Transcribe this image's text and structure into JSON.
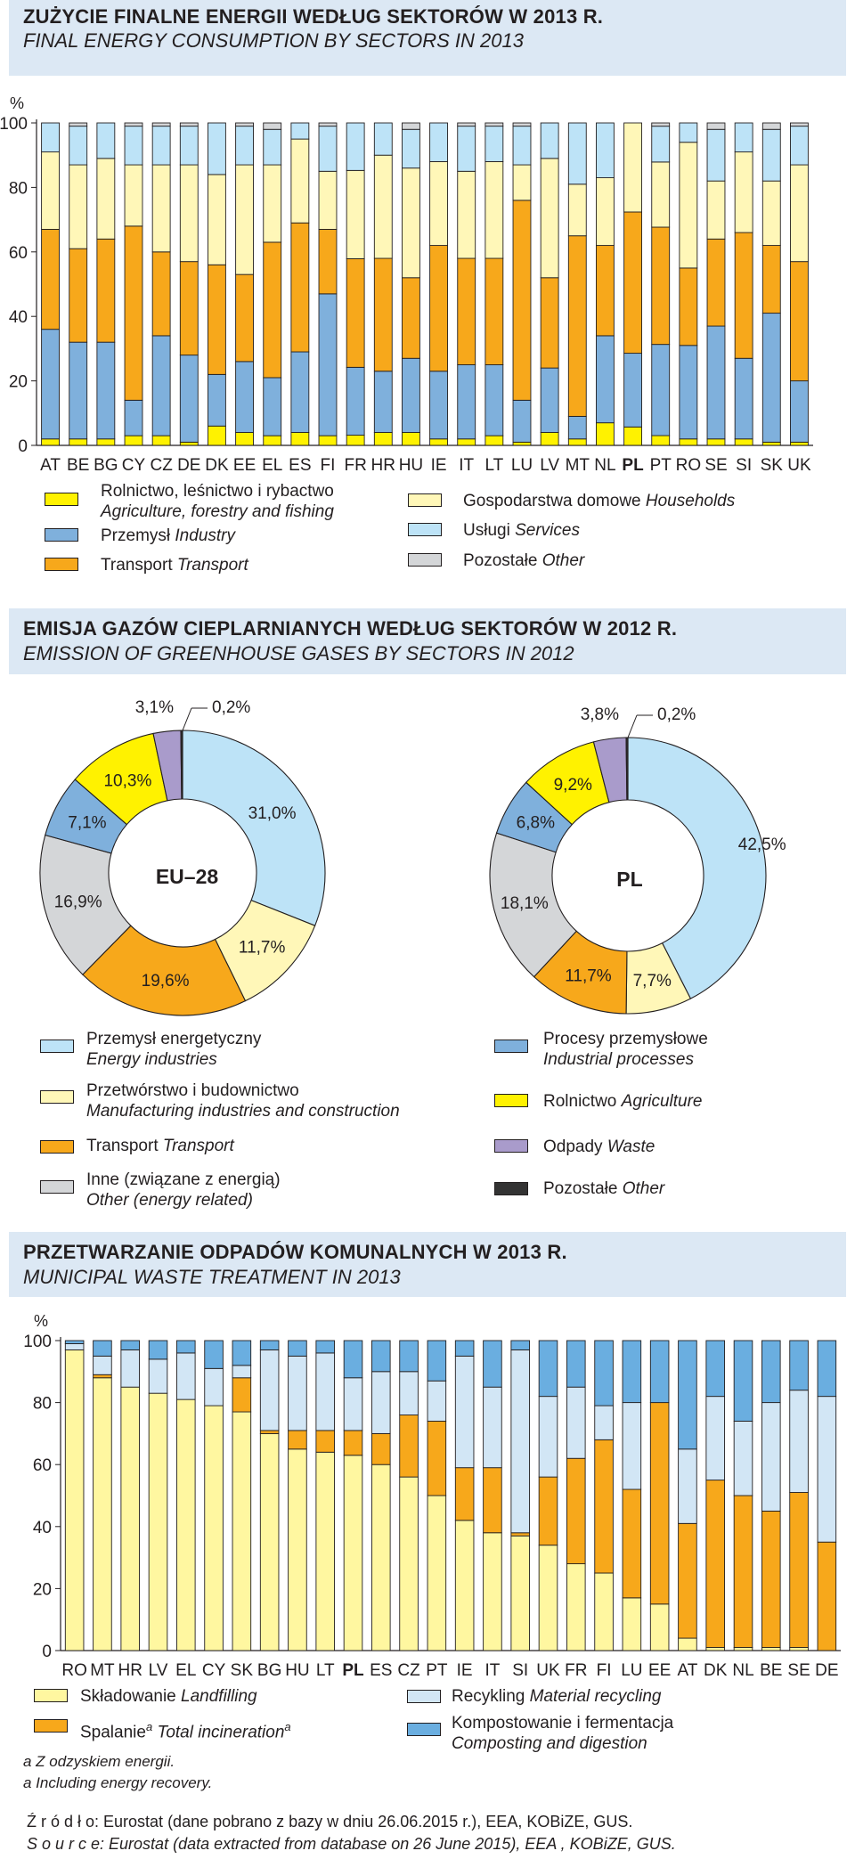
{
  "sections": {
    "energy": {
      "title_pl": "ZUŻYCIE FINALNE ENERGII WEDŁUG SEKTORÓW W 2013 R.",
      "title_en": "FINAL ENERGY CONSUMPTION BY SECTORS IN 2013",
      "unit": "%",
      "legend": [
        {
          "pl": "Rolnictwo, leśnictwo i rybactwo",
          "en": "Agriculture, forestry and fishing",
          "color": "#fff200"
        },
        {
          "pl": "Przemysł",
          "en": "Industry",
          "color": "#7fb0dc"
        },
        {
          "pl": "Transport",
          "en": "Transport",
          "color": "#f7a81b"
        },
        {
          "pl": "Gospodarstwa domowe",
          "en": "Households",
          "color": "#fff7b8"
        },
        {
          "pl": "Usługi",
          "en": "Services",
          "color": "#bde3f7"
        },
        {
          "pl": "Pozostałe",
          "en": "Other",
          "color": "#d4d6d8"
        }
      ]
    },
    "ghg": {
      "title_pl": "EMISJA GAZÓW CIEPLARNIANYCH WEDŁUG SEKTORÓW W 2012 R.",
      "title_en": "EMISSION OF GREENHOUSE GASES BY SECTORS IN  2012",
      "legend": [
        {
          "pl": "Przemysł energetyczny",
          "en": "Energy industries",
          "color": "#bde3f7"
        },
        {
          "pl": "Przetwórstwo i budownictwo",
          "en": "Manufacturing industries and construction",
          "color": "#fff7b8"
        },
        {
          "pl": "Transport",
          "en": "Transport",
          "color": "#f7a81b"
        },
        {
          "pl": "Inne (związane z energią)",
          "en": "Other (energy related)",
          "color": "#d4d6d8"
        },
        {
          "pl": "Procesy przemysłowe",
          "en": "Industrial processes",
          "color": "#7fb0dc"
        },
        {
          "pl": "Rolnictwo",
          "en": "Agriculture",
          "color": "#fff200"
        },
        {
          "pl": "Odpady",
          "en": "Waste",
          "color": "#a99bcb"
        },
        {
          "pl": "Pozostałe",
          "en": "Other",
          "color": "#333333"
        }
      ]
    },
    "waste": {
      "title_pl": "PRZETWARZANIE ODPADÓW KOMUNALNYCH W 2013 R.",
      "title_en": "MUNICIPAL WASTE TREATMENT IN 2013",
      "unit": "%",
      "legend": [
        {
          "pl": "Składowanie",
          "en": "Landfilling",
          "color": "#fff7a0"
        },
        {
          "pl": "Spalanie",
          "sup": "a",
          "en": "Total incineration",
          "color": "#f7a81b"
        },
        {
          "pl": "Recykling",
          "en": "Material recycling",
          "color": "#d2e6f5"
        },
        {
          "pl": "Kompostowanie i fermentacja",
          "en": "Composting and digestion",
          "color": "#6aaee0"
        }
      ],
      "footnote_pl": "a Z odzyskiem energii.",
      "footnote_en": "a Including energy recovery."
    }
  },
  "source_pl": "Ź r ó d ł o: Eurostat (dane pobrano z bazy w dniu 26.06.2015 r.), EEA, KOBiZE, GUS.",
  "source_en": "S o u r c e: Eurostat (data extracted from database on 26 June 2015), EEA , KOBiZE, GUS.",
  "chart_data": [
    {
      "type": "bar",
      "stacked": true,
      "title": "FINAL ENERGY CONSUMPTION BY SECTORS IN 2013",
      "ylabel": "%",
      "ylim": [
        0,
        100
      ],
      "yticks": [
        0,
        20,
        40,
        60,
        80,
        100
      ],
      "highlight": "PL",
      "categories": [
        "AT",
        "BE",
        "BG",
        "CY",
        "CZ",
        "DE",
        "DK",
        "EE",
        "EL",
        "ES",
        "FI",
        "FR",
        "HR",
        "HU",
        "IE",
        "IT",
        "LT",
        "LU",
        "LV",
        "MT",
        "NL",
        "PL",
        "PT",
        "RO",
        "SE",
        "SI",
        "SK",
        "UK"
      ],
      "series": [
        {
          "name": "Agriculture",
          "values": [
            2,
            2,
            2,
            3,
            3,
            1,
            6,
            4,
            3,
            4,
            3,
            3,
            4,
            4,
            2,
            2,
            3,
            1,
            4,
            2,
            7,
            6,
            3,
            2,
            2,
            2,
            1,
            1
          ]
        },
        {
          "name": "Industry",
          "values": [
            34,
            30,
            30,
            11,
            31,
            27,
            16,
            22,
            18,
            25,
            44,
            20,
            19,
            23,
            21,
            23,
            22,
            13,
            20,
            7,
            27,
            24,
            28,
            29,
            35,
            25,
            40,
            19
          ]
        },
        {
          "name": "Transport",
          "values": [
            31,
            29,
            32,
            54,
            26,
            29,
            34,
            27,
            42,
            40,
            20,
            32,
            35,
            25,
            39,
            33,
            33,
            62,
            28,
            56,
            28,
            46,
            36,
            24,
            27,
            39,
            21,
            37
          ]
        },
        {
          "name": "Households",
          "values": [
            24,
            26,
            25,
            19,
            27,
            30,
            28,
            34,
            24,
            26,
            18,
            26,
            32,
            34,
            26,
            27,
            30,
            11,
            37,
            16,
            21,
            29,
            20,
            39,
            18,
            25,
            20,
            30
          ]
        },
        {
          "name": "Services",
          "values": [
            9,
            12,
            11,
            12,
            12,
            12,
            16,
            12,
            11,
            5,
            14,
            14,
            10,
            12,
            12,
            14,
            11,
            12,
            11,
            19,
            17,
            0,
            11,
            6,
            16,
            9,
            16,
            12
          ]
        },
        {
          "name": "Other",
          "values": [
            0,
            1,
            0,
            1,
            1,
            1,
            0,
            1,
            2,
            0,
            1,
            0,
            0,
            2,
            0,
            1,
            1,
            1,
            0,
            0,
            0,
            0,
            1,
            0,
            2,
            0,
            2,
            1
          ]
        }
      ]
    },
    {
      "type": "pie",
      "donut": true,
      "title": "EU–28",
      "slices": [
        {
          "name": "Energy industries",
          "value": 31.0,
          "label": "31,0%"
        },
        {
          "name": "Manufacturing industries and construction",
          "value": 11.7,
          "label": "11,7%"
        },
        {
          "name": "Transport",
          "value": 19.6,
          "label": "19,6%"
        },
        {
          "name": "Other (energy related)",
          "value": 16.9,
          "label": "16,9%"
        },
        {
          "name": "Industrial processes",
          "value": 7.1,
          "label": "7,1%"
        },
        {
          "name": "Agriculture",
          "value": 10.3,
          "label": "10,3%"
        },
        {
          "name": "Waste",
          "value": 3.1,
          "label": "3,1%"
        },
        {
          "name": "Other",
          "value": 0.2,
          "label": "0,2%"
        }
      ]
    },
    {
      "type": "pie",
      "donut": true,
      "title": "PL",
      "slices": [
        {
          "name": "Energy industries",
          "value": 42.5,
          "label": "42,5%"
        },
        {
          "name": "Manufacturing industries and construction",
          "value": 7.7,
          "label": "7,7%"
        },
        {
          "name": "Transport",
          "value": 11.7,
          "label": "11,7%"
        },
        {
          "name": "Other (energy related)",
          "value": 18.1,
          "label": "18,1%"
        },
        {
          "name": "Industrial processes",
          "value": 6.8,
          "label": "6,8%"
        },
        {
          "name": "Agriculture",
          "value": 9.2,
          "label": "9,2%"
        },
        {
          "name": "Waste",
          "value": 3.8,
          "label": "3,8%"
        },
        {
          "name": "Other",
          "value": 0.2,
          "label": "0,2%"
        }
      ]
    },
    {
      "type": "bar",
      "stacked": true,
      "title": "MUNICIPAL WASTE TREATMENT IN 2013",
      "ylabel": "%",
      "ylim": [
        0,
        100
      ],
      "yticks": [
        0,
        20,
        40,
        60,
        80,
        100
      ],
      "highlight": "PL",
      "categories": [
        "RO",
        "MT",
        "HR",
        "LV",
        "EL",
        "CY",
        "SK",
        "BG",
        "HU",
        "LT",
        "PL",
        "ES",
        "CZ",
        "PT",
        "IE",
        "IT",
        "SI",
        "UK",
        "FR",
        "FI",
        "LU",
        "EE",
        "AT",
        "DK",
        "NL",
        "BE",
        "SE",
        "DE"
      ],
      "series": [
        {
          "name": "Landfilling",
          "values": [
            97,
            88,
            85,
            83,
            81,
            79,
            77,
            70,
            65,
            64,
            63,
            60,
            56,
            50,
            42,
            38,
            37,
            34,
            28,
            25,
            17,
            15,
            4,
            1,
            1,
            1,
            1,
            0
          ]
        },
        {
          "name": "Total incineration",
          "values": [
            0,
            1,
            0,
            0,
            0,
            0,
            11,
            1,
            6,
            7,
            8,
            10,
            20,
            24,
            17,
            21,
            1,
            22,
            34,
            43,
            35,
            65,
            37,
            54,
            49,
            44,
            50,
            35
          ]
        },
        {
          "name": "Material recycling",
          "values": [
            2,
            6,
            12,
            11,
            15,
            12,
            4,
            26,
            24,
            25,
            17,
            20,
            14,
            13,
            36,
            26,
            59,
            26,
            23,
            11,
            28,
            0,
            24,
            27,
            24,
            35,
            33,
            47
          ]
        },
        {
          "name": "Composting and digestion",
          "values": [
            1,
            5,
            3,
            6,
            4,
            9,
            8,
            3,
            5,
            4,
            12,
            10,
            10,
            13,
            5,
            15,
            3,
            18,
            15,
            21,
            20,
            20,
            35,
            18,
            26,
            20,
            16,
            18
          ]
        }
      ]
    }
  ]
}
